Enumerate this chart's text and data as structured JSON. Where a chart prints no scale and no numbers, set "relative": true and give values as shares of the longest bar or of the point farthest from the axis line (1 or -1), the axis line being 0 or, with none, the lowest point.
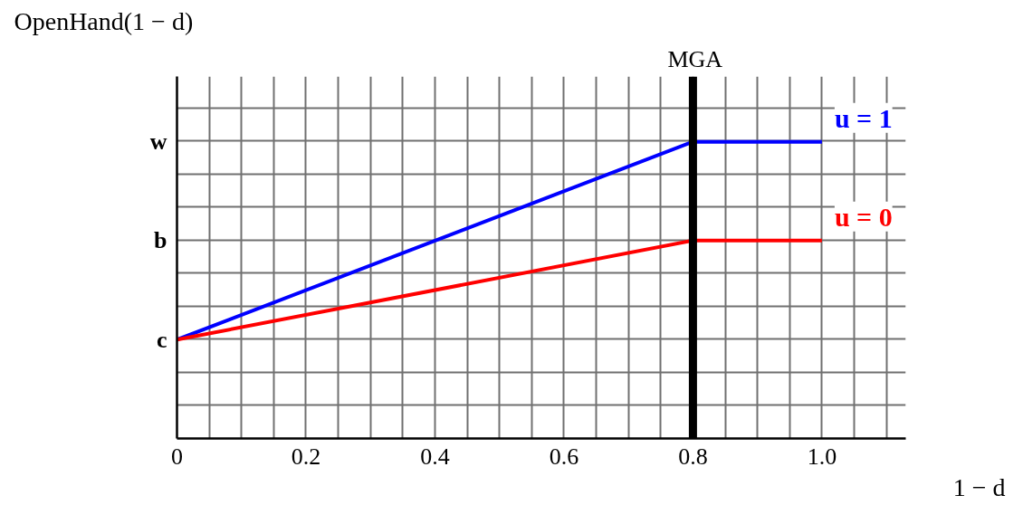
{
  "chart_data": {
    "type": "line",
    "relative": true,
    "xlabel": "1 − d",
    "ylabel": "OpenHand(1 − d)",
    "xlim": [
      0,
      1.13
    ],
    "ylim": [
      0,
      1.22
    ],
    "xticks": [
      0,
      {
        "value": 0.05,
        "label": null
      },
      0.2,
      {
        "value": 0.1,
        "label": null
      },
      {
        "value": 0.15,
        "label": null
      },
      {
        "value": 0.25,
        "label": null
      },
      {
        "value": 0.3,
        "label": null
      },
      {
        "value": 0.35,
        "label": null
      },
      0.4,
      {
        "value": 0.45,
        "label": null
      },
      {
        "value": 0.5,
        "label": null
      },
      {
        "value": 0.55,
        "label": null
      },
      0.6,
      {
        "value": 0.65,
        "label": null
      },
      {
        "value": 0.7,
        "label": null
      },
      {
        "value": 0.75,
        "label": null
      },
      0.8,
      {
        "value": 0.85,
        "label": null
      },
      {
        "value": 0.9,
        "label": null
      },
      {
        "value": 0.95,
        "label": null
      },
      {
        "value": 1.0,
        "label": "1.0"
      },
      {
        "value": 1.05,
        "label": null
      },
      {
        "value": 1.1,
        "label": null
      }
    ],
    "annotations": [
      "c",
      "b",
      "w"
    ],
    "grid": true,
    "marker": "none",
    "line_style": "solid",
    "series": [
      {
        "name": "u = 1",
        "color": "#0000ff",
        "x": [
          0,
          0.8,
          1.0
        ],
        "values": [
          0.333,
          1,
          1
        ]
      },
      {
        "name": "u = 0",
        "color": "#ff0000",
        "x": [
          0,
          0.8,
          1.0
        ],
        "values": [
          0.333,
          0.667,
          0.667
        ]
      }
    ],
    "ref_lines": [
      {
        "axis": "x",
        "value": 0.8,
        "label": "MGA",
        "color": "#000000"
      }
    ]
  }
}
